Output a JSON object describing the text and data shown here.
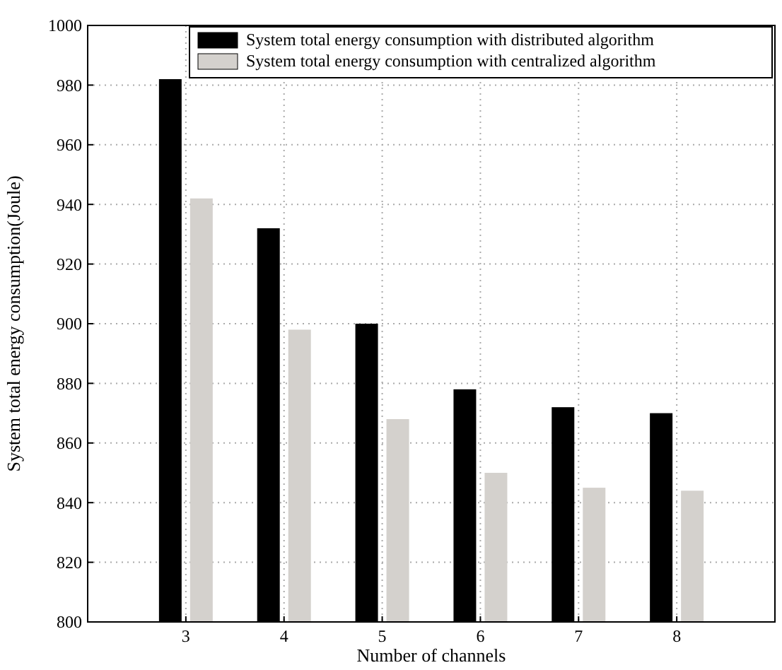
{
  "chart_data": {
    "type": "bar",
    "xlabel": "Number of channels",
    "ylabel": "System total energy consumption(Joule)",
    "categories": [
      "3",
      "4",
      "5",
      "6",
      "7",
      "8"
    ],
    "series": [
      {
        "name": "System total energy consumption with distributed algorithm",
        "color": "#000000",
        "values": [
          982,
          932,
          900,
          878,
          872,
          870
        ]
      },
      {
        "name": "System total energy consumption with centralized algorithm",
        "color": "#d4d1cd",
        "values": [
          942,
          898,
          868,
          850,
          845,
          844
        ]
      }
    ],
    "ylim": [
      800,
      1000
    ],
    "yticks": [
      800,
      820,
      840,
      860,
      880,
      900,
      920,
      940,
      960,
      980,
      1000
    ],
    "grid": true,
    "legend": "top right"
  }
}
